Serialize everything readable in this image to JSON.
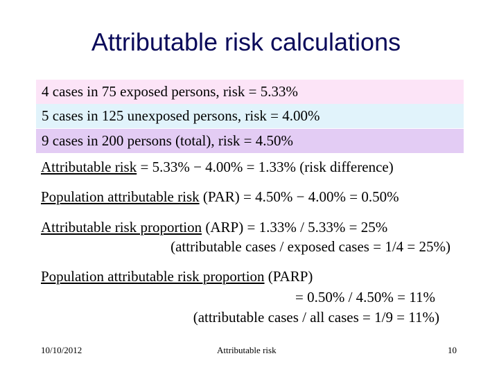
{
  "slide": {
    "title": "Attributable risk calculations",
    "bands": [
      {
        "text": "4 cases in 75 exposed persons, risk = 5.33%",
        "color": "#fce4f7"
      },
      {
        "text": "5 cases in 125 unexposed persons, risk = 4.00%",
        "color": "#e1f3fb"
      },
      {
        "text": "9 cases in 200 persons (total), risk = 4.50%",
        "color": "#e3ccf4"
      }
    ],
    "ar": {
      "term": "Attributable risk",
      "rest": " = 5.33% − 4.00% = 1.33% (risk difference)"
    },
    "par": {
      "term": "Population attributable risk",
      "rest": " (PAR) = 4.50% − 4.00% = 0.50%"
    },
    "arp": {
      "term": "Attributable risk proportion",
      "rest": " (ARP) = 1.33% / 5.33% = 25%",
      "line2": "(attributable cases / exposed cases = 1/4 = 25%)"
    },
    "parp": {
      "term": "Population attributable risk proportion",
      "rest": " (PARP)",
      "line2": "= 0.50% / 4.50% = 11%",
      "line3": "(attributable cases / all cases = 1/9 = 11%)"
    }
  },
  "footer": {
    "date": "10/10/2012",
    "center": "Attributable risk",
    "page": "10"
  }
}
